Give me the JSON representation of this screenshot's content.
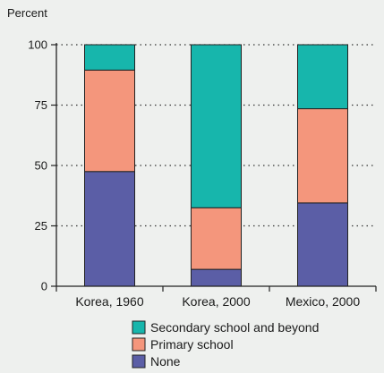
{
  "chart_data": {
    "type": "bar",
    "stacked": true,
    "ylabel": "Percent",
    "xlabel": "",
    "ylim": [
      0,
      100
    ],
    "yticks": [
      0,
      25,
      50,
      75,
      100
    ],
    "grid": "dotted horizontal",
    "legend_position": "bottom-center",
    "categories": [
      "Korea, 1960",
      "Korea, 2000",
      "Mexico, 2000"
    ],
    "series": [
      {
        "name": "None",
        "color": "#5b5ea6",
        "values": [
          47.5,
          7,
          34.5
        ]
      },
      {
        "name": "Primary school",
        "color": "#f4967c",
        "values": [
          42,
          25.5,
          39
        ]
      },
      {
        "name": "Secondary school and beyond",
        "color": "#17b6ac",
        "values": [
          10.5,
          67.5,
          26.5
        ]
      }
    ],
    "legend_order": [
      "Secondary school and beyond",
      "Primary school",
      "None"
    ]
  }
}
